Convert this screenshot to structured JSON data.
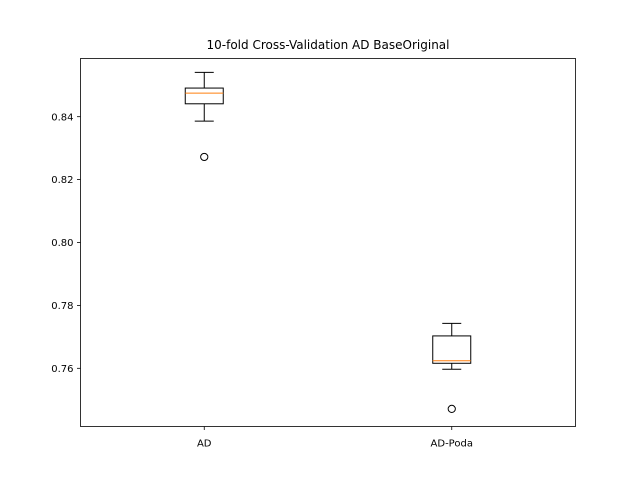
{
  "chart_data": {
    "type": "boxplot",
    "title": "10-fold Cross-Validation AD BaseOriginal",
    "xlabel": "",
    "ylabel": "",
    "categories": [
      "AD",
      "AD-Poda"
    ],
    "ylim": [
      0.7415,
      0.8585
    ],
    "yticks": [
      0.76,
      0.78,
      0.8,
      0.82,
      0.84
    ],
    "ytick_labels": [
      "0.76",
      "0.78",
      "0.80",
      "0.82",
      "0.84"
    ],
    "grid": false,
    "boxes": [
      {
        "label": "AD",
        "whisker_low": 0.8386,
        "q1": 0.8441,
        "median": 0.8475,
        "q3": 0.8491,
        "whisker_high": 0.8541,
        "outliers": [
          0.8272
        ]
      },
      {
        "label": "AD-Poda",
        "whisker_low": 0.7597,
        "q1": 0.7616,
        "median": 0.7624,
        "q3": 0.7703,
        "whisker_high": 0.7743,
        "outliers": [
          0.7471
        ]
      }
    ],
    "colors": {
      "box": "#000000",
      "median": "#ff7f0e",
      "outlier": "#000000"
    }
  }
}
